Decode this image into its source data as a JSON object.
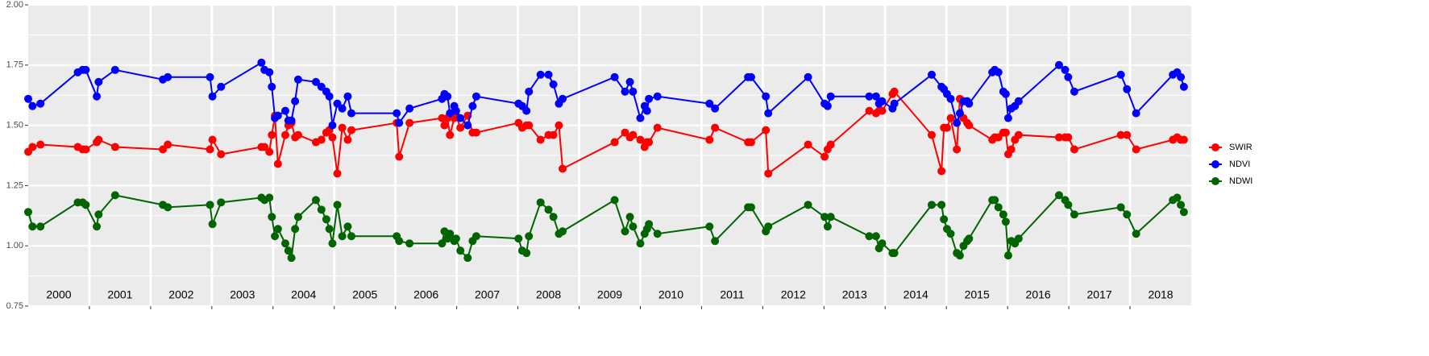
{
  "chart_data": {
    "type": "line",
    "x": [
      2000.0,
      2000.07,
      2000.2,
      2000.81,
      2000.89,
      2000.94,
      2001.12,
      2001.15,
      2001.42,
      2002.2,
      2002.28,
      2002.97,
      2003.01,
      2003.15,
      2003.81,
      2003.86,
      2003.94,
      2003.98,
      2004.03,
      2004.08,
      2004.2,
      2004.25,
      2004.3,
      2004.36,
      2004.41,
      2004.7,
      2004.79,
      2004.87,
      2004.92,
      2004.97,
      2005.05,
      2005.13,
      2005.22,
      2005.28,
      2006.02,
      2006.06,
      2006.23,
      2006.76,
      2006.8,
      2006.85,
      2006.89,
      2006.96,
      2006.99,
      2007.06,
      2007.18,
      2007.26,
      2007.32,
      2008.01,
      2008.07,
      2008.14,
      2008.18,
      2008.37,
      2008.5,
      2008.58,
      2008.67,
      2008.73,
      2009.58,
      2009.75,
      2009.83,
      2009.88,
      2010.0,
      2010.07,
      2010.11,
      2010.14,
      2010.28,
      2011.13,
      2011.22,
      2011.76,
      2011.81,
      2012.05,
      2012.09,
      2012.74,
      2013.01,
      2013.06,
      2013.11,
      2013.74,
      2013.85,
      2013.9,
      2013.95,
      2014.12,
      2014.15,
      2014.76,
      2014.92,
      2014.96,
      2015.01,
      2015.07,
      2015.17,
      2015.22,
      2015.28,
      2015.34,
      2015.37,
      2015.75,
      2015.79,
      2015.85,
      2015.93,
      2015.97,
      2016.01,
      2016.06,
      2016.12,
      2016.18,
      2016.84,
      2016.94,
      2016.99,
      2017.09,
      2017.85,
      2017.95,
      2018.1,
      2018.7,
      2018.77,
      2018.83,
      2018.88
    ],
    "series": [
      {
        "name": "SWIR",
        "color": "#ff0000",
        "values": [
          1.39,
          1.41,
          1.42,
          1.41,
          1.4,
          1.4,
          1.43,
          1.44,
          1.41,
          1.4,
          1.42,
          1.4,
          1.44,
          1.38,
          1.41,
          1.41,
          1.39,
          1.46,
          1.54,
          1.34,
          1.46,
          1.5,
          1.51,
          1.45,
          1.46,
          1.43,
          1.44,
          1.47,
          1.48,
          1.45,
          1.3,
          1.49,
          1.44,
          1.48,
          1.51,
          1.37,
          1.51,
          1.53,
          1.5,
          1.53,
          1.46,
          1.53,
          1.54,
          1.49,
          1.54,
          1.47,
          1.47,
          1.51,
          1.49,
          1.5,
          1.5,
          1.44,
          1.46,
          1.46,
          1.5,
          1.32,
          1.43,
          1.47,
          1.45,
          1.46,
          1.44,
          1.41,
          1.43,
          1.43,
          1.49,
          1.44,
          1.49,
          1.43,
          1.43,
          1.48,
          1.3,
          1.42,
          1.37,
          1.4,
          1.42,
          1.56,
          1.55,
          1.56,
          1.56,
          1.63,
          1.64,
          1.46,
          1.31,
          1.49,
          1.49,
          1.53,
          1.4,
          1.61,
          1.53,
          1.51,
          1.5,
          1.44,
          1.45,
          1.45,
          1.47,
          1.47,
          1.38,
          1.4,
          1.44,
          1.46,
          1.45,
          1.45,
          1.45,
          1.4,
          1.46,
          1.46,
          1.4,
          1.44,
          1.45,
          1.44,
          1.44
        ]
      },
      {
        "name": "NDVI",
        "color": "#0000ff",
        "values": [
          1.61,
          1.58,
          1.59,
          1.72,
          1.73,
          1.73,
          1.62,
          1.68,
          1.73,
          1.69,
          1.7,
          1.7,
          1.62,
          1.66,
          1.76,
          1.73,
          1.72,
          1.66,
          1.53,
          1.54,
          1.56,
          1.52,
          1.52,
          1.6,
          1.69,
          1.68,
          1.66,
          1.64,
          1.62,
          1.5,
          1.59,
          1.57,
          1.62,
          1.55,
          1.55,
          1.51,
          1.57,
          1.61,
          1.63,
          1.62,
          1.55,
          1.58,
          1.56,
          1.53,
          1.5,
          1.58,
          1.62,
          1.59,
          1.58,
          1.56,
          1.64,
          1.71,
          1.71,
          1.67,
          1.59,
          1.61,
          1.7,
          1.64,
          1.68,
          1.64,
          1.53,
          1.58,
          1.56,
          1.61,
          1.62,
          1.59,
          1.57,
          1.7,
          1.7,
          1.62,
          1.55,
          1.7,
          1.59,
          1.58,
          1.62,
          1.62,
          1.62,
          1.59,
          1.6,
          1.57,
          1.59,
          1.71,
          1.66,
          1.65,
          1.63,
          1.61,
          1.51,
          1.55,
          1.6,
          1.6,
          1.59,
          1.72,
          1.73,
          1.72,
          1.64,
          1.63,
          1.53,
          1.57,
          1.58,
          1.6,
          1.75,
          1.73,
          1.7,
          1.64,
          1.71,
          1.65,
          1.55,
          1.71,
          1.72,
          1.7,
          1.66
        ]
      },
      {
        "name": "NDWI",
        "color": "#006400",
        "values": [
          1.14,
          1.08,
          1.08,
          1.18,
          1.18,
          1.17,
          1.08,
          1.13,
          1.21,
          1.17,
          1.16,
          1.17,
          1.09,
          1.18,
          1.2,
          1.19,
          1.2,
          1.12,
          1.04,
          1.07,
          1.01,
          0.98,
          0.95,
          1.07,
          1.12,
          1.19,
          1.15,
          1.11,
          1.07,
          1.01,
          1.17,
          1.04,
          1.08,
          1.04,
          1.04,
          1.02,
          1.01,
          1.01,
          1.06,
          1.03,
          1.05,
          1.02,
          1.03,
          0.98,
          0.95,
          1.02,
          1.04,
          1.03,
          0.98,
          0.97,
          1.04,
          1.18,
          1.15,
          1.12,
          1.05,
          1.06,
          1.19,
          1.06,
          1.12,
          1.08,
          1.01,
          1.05,
          1.07,
          1.09,
          1.05,
          1.08,
          1.02,
          1.16,
          1.16,
          1.06,
          1.08,
          1.17,
          1.12,
          1.08,
          1.12,
          1.04,
          1.04,
          0.99,
          1.01,
          0.97,
          0.97,
          1.17,
          1.17,
          1.11,
          1.07,
          1.05,
          0.97,
          0.96,
          1.0,
          1.02,
          1.03,
          1.19,
          1.19,
          1.16,
          1.13,
          1.1,
          0.96,
          1.02,
          1.01,
          1.03,
          1.21,
          1.19,
          1.17,
          1.13,
          1.16,
          1.13,
          1.05,
          1.19,
          1.2,
          1.17,
          1.14
        ]
      }
    ],
    "xlim": [
      2000,
      2019
    ],
    "xticks": [
      2001,
      2002,
      2003,
      2004,
      2005,
      2006,
      2007,
      2008,
      2009,
      2010,
      2011,
      2012,
      2013,
      2014,
      2015,
      2016,
      2017,
      2018
    ],
    "ylim": [
      0.75,
      2.0
    ],
    "yticks": [
      {
        "value": 0.75,
        "label": "0.75"
      },
      {
        "value": 1,
        "label": "1.00"
      },
      {
        "value": 1.25,
        "label": "1.25"
      },
      {
        "value": 1.5,
        "label": "1.50"
      },
      {
        "value": 1.75,
        "label": "1.75"
      },
      {
        "value": 2,
        "label": "2.00"
      }
    ],
    "year_labels": [
      {
        "x": 2000.5,
        "label": "2000"
      },
      {
        "x": 2001.5,
        "label": "2001"
      },
      {
        "x": 2002.5,
        "label": "2002"
      },
      {
        "x": 2003.5,
        "label": "2003"
      },
      {
        "x": 2004.5,
        "label": "2004"
      },
      {
        "x": 2005.5,
        "label": "2005"
      },
      {
        "x": 2006.5,
        "label": "2006"
      },
      {
        "x": 2007.5,
        "label": "2007"
      },
      {
        "x": 2008.5,
        "label": "2008"
      },
      {
        "x": 2009.5,
        "label": "2009"
      },
      {
        "x": 2010.5,
        "label": "2010"
      },
      {
        "x": 2011.5,
        "label": "2011"
      },
      {
        "x": 2012.5,
        "label": "2012"
      },
      {
        "x": 2013.5,
        "label": "2013"
      },
      {
        "x": 2014.5,
        "label": "2014"
      },
      {
        "x": 2015.5,
        "label": "2015"
      },
      {
        "x": 2016.5,
        "label": "2016"
      },
      {
        "x": 2017.5,
        "label": "2017"
      },
      {
        "x": 2018.5,
        "label": "2018"
      }
    ],
    "grid": true,
    "legend": "right"
  }
}
